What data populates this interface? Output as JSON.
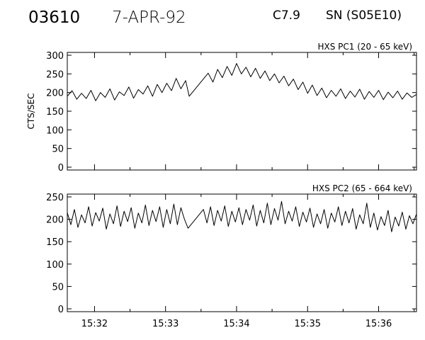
{
  "header": {
    "event_id": "03610",
    "date": "7-APR-92",
    "goes_class": "C7.9",
    "location": "SN (S05E10)"
  },
  "chart_data": [
    {
      "type": "line",
      "title": "HXS PC1 (20 - 65 keV)",
      "ylabel": "CTS/SEC",
      "xlabel": "",
      "xlim": [
        "15:31:37",
        "15:36:32"
      ],
      "ylim": [
        0,
        300
      ],
      "yticks": [
        0,
        50,
        100,
        150,
        200,
        250,
        300
      ],
      "xticks": [
        "15:32",
        "15:33",
        "15:34",
        "15:35",
        "15:36"
      ],
      "series": [
        {
          "points": [
            [
              "15:31:37",
              190
            ],
            [
              "15:31:41",
              205
            ],
            [
              "15:31:45",
              182
            ],
            [
              "15:31:49",
              198
            ],
            [
              "15:31:53",
              184
            ],
            [
              "15:31:57",
              206
            ],
            [
              "15:32:01",
              178
            ],
            [
              "15:32:05",
              200
            ],
            [
              "15:32:09",
              187
            ],
            [
              "15:32:13",
              210
            ],
            [
              "15:32:17",
              180
            ],
            [
              "15:32:21",
              202
            ],
            [
              "15:32:25",
              192
            ],
            [
              "15:32:29",
              215
            ],
            [
              "15:32:33",
              185
            ],
            [
              "15:32:37",
              208
            ],
            [
              "15:32:41",
              196
            ],
            [
              "15:32:45",
              218
            ],
            [
              "15:32:49",
              190
            ],
            [
              "15:32:53",
              222
            ],
            [
              "15:32:57",
              200
            ],
            [
              "15:33:01",
              225
            ],
            [
              "15:33:05",
              205
            ],
            [
              "15:33:09",
              238
            ],
            [
              "15:33:13",
              210
            ],
            [
              "15:33:17",
              232
            ],
            [
              "15:33:20",
              190
            ],
            [
              "15:33:36",
              252
            ],
            [
              "15:33:40",
              228
            ],
            [
              "15:33:44",
              262
            ],
            [
              "15:33:48",
              240
            ],
            [
              "15:33:52",
              270
            ],
            [
              "15:33:56",
              246
            ],
            [
              "15:34:00",
              278
            ],
            [
              "15:34:04",
              250
            ],
            [
              "15:34:08",
              268
            ],
            [
              "15:34:12",
              242
            ],
            [
              "15:34:16",
              265
            ],
            [
              "15:34:20",
              238
            ],
            [
              "15:34:24",
              258
            ],
            [
              "15:34:28",
              232
            ],
            [
              "15:34:32",
              250
            ],
            [
              "15:34:36",
              226
            ],
            [
              "15:34:40",
              244
            ],
            [
              "15:34:44",
              218
            ],
            [
              "15:34:48",
              236
            ],
            [
              "15:34:52",
              208
            ],
            [
              "15:34:56",
              228
            ],
            [
              "15:35:00",
              198
            ],
            [
              "15:35:04",
              220
            ],
            [
              "15:35:08",
              192
            ],
            [
              "15:35:12",
              212
            ],
            [
              "15:35:16",
              186
            ],
            [
              "15:35:20",
              206
            ],
            [
              "15:35:24",
              190
            ],
            [
              "15:35:28",
              210
            ],
            [
              "15:35:32",
              184
            ],
            [
              "15:35:36",
              204
            ],
            [
              "15:35:40",
              188
            ],
            [
              "15:35:44",
              209
            ],
            [
              "15:35:48",
              182
            ],
            [
              "15:35:52",
              203
            ],
            [
              "15:35:56",
              187
            ],
            [
              "15:36:00",
              206
            ],
            [
              "15:36:04",
              181
            ],
            [
              "15:36:08",
              201
            ],
            [
              "15:36:12",
              186
            ],
            [
              "15:36:16",
              204
            ],
            [
              "15:36:20",
              182
            ],
            [
              "15:36:24",
              199
            ],
            [
              "15:36:28",
              187
            ],
            [
              "15:36:32",
              195
            ]
          ]
        }
      ]
    },
    {
      "type": "line",
      "title": "HXS PC2 (65 - 664 keV)",
      "ylabel": "",
      "xlabel": "",
      "xlim": [
        "15:31:37",
        "15:36:32"
      ],
      "ylim": [
        0,
        250
      ],
      "yticks": [
        0,
        50,
        100,
        150,
        200,
        250
      ],
      "xticks": [
        "15:32",
        "15:33",
        "15:34",
        "15:35",
        "15:36"
      ],
      "series": [
        {
          "points": [
            [
              "15:31:37",
              215
            ],
            [
              "15:31:40",
              188
            ],
            [
              "15:31:43",
              222
            ],
            [
              "15:31:46",
              182
            ],
            [
              "15:31:49",
              210
            ],
            [
              "15:31:52",
              192
            ],
            [
              "15:31:55",
              228
            ],
            [
              "15:31:58",
              185
            ],
            [
              "15:32:01",
              215
            ],
            [
              "15:32:04",
              196
            ],
            [
              "15:32:07",
              225
            ],
            [
              "15:32:10",
              178
            ],
            [
              "15:32:13",
              212
            ],
            [
              "15:32:16",
              190
            ],
            [
              "15:32:19",
              230
            ],
            [
              "15:32:22",
              184
            ],
            [
              "15:32:25",
              218
            ],
            [
              "15:32:28",
              195
            ],
            [
              "15:32:31",
              226
            ],
            [
              "15:32:34",
              180
            ],
            [
              "15:32:37",
              214
            ],
            [
              "15:32:40",
              192
            ],
            [
              "15:32:43",
              232
            ],
            [
              "15:32:46",
              186
            ],
            [
              "15:32:49",
              220
            ],
            [
              "15:32:52",
              195
            ],
            [
              "15:32:55",
              228
            ],
            [
              "15:32:58",
              182
            ],
            [
              "15:33:01",
              222
            ],
            [
              "15:33:04",
              190
            ],
            [
              "15:33:07",
              234
            ],
            [
              "15:33:10",
              188
            ],
            [
              "15:33:13",
              226
            ],
            [
              "15:33:16",
              200
            ],
            [
              "15:33:19",
              180
            ],
            [
              "15:33:32",
              222
            ],
            [
              "15:33:35",
              192
            ],
            [
              "15:33:38",
              228
            ],
            [
              "15:33:41",
              186
            ],
            [
              "15:33:44",
              220
            ],
            [
              "15:33:47",
              196
            ],
            [
              "15:33:50",
              230
            ],
            [
              "15:33:53",
              184
            ],
            [
              "15:33:56",
              218
            ],
            [
              "15:33:59",
              194
            ],
            [
              "15:34:02",
              226
            ],
            [
              "15:34:05",
              188
            ],
            [
              "15:34:08",
              222
            ],
            [
              "15:34:11",
              198
            ],
            [
              "15:34:14",
              232
            ],
            [
              "15:34:17",
              185
            ],
            [
              "15:34:20",
              220
            ],
            [
              "15:34:23",
              192
            ],
            [
              "15:34:26",
              236
            ],
            [
              "15:34:29",
              188
            ],
            [
              "15:34:32",
              224
            ],
            [
              "15:34:35",
              198
            ],
            [
              "15:34:38",
              240
            ],
            [
              "15:34:41",
              190
            ],
            [
              "15:34:44",
              218
            ],
            [
              "15:34:47",
              196
            ],
            [
              "15:34:50",
              228
            ],
            [
              "15:34:53",
              184
            ],
            [
              "15:34:56",
              216
            ],
            [
              "15:34:59",
              194
            ],
            [
              "15:35:02",
              225
            ],
            [
              "15:35:05",
              182
            ],
            [
              "15:35:08",
              212
            ],
            [
              "15:35:11",
              190
            ],
            [
              "15:35:14",
              222
            ],
            [
              "15:35:17",
              180
            ],
            [
              "15:35:20",
              214
            ],
            [
              "15:35:23",
              194
            ],
            [
              "15:35:26",
              228
            ],
            [
              "15:35:29",
              186
            ],
            [
              "15:35:32",
              218
            ],
            [
              "15:35:35",
              192
            ],
            [
              "15:35:38",
              224
            ],
            [
              "15:35:41",
              178
            ],
            [
              "15:35:44",
              210
            ],
            [
              "15:35:47",
              190
            ],
            [
              "15:35:50",
              236
            ],
            [
              "15:35:53",
              182
            ],
            [
              "15:35:56",
              214
            ],
            [
              "15:35:59",
              176
            ],
            [
              "15:36:02",
              206
            ],
            [
              "15:36:05",
              186
            ],
            [
              "15:36:08",
              220
            ],
            [
              "15:36:11",
              172
            ],
            [
              "15:36:14",
              205
            ],
            [
              "15:36:17",
              185
            ],
            [
              "15:36:20",
              216
            ],
            [
              "15:36:23",
              178
            ],
            [
              "15:36:26",
              208
            ],
            [
              "15:36:29",
              190
            ],
            [
              "15:36:32",
              212
            ]
          ]
        }
      ]
    }
  ]
}
